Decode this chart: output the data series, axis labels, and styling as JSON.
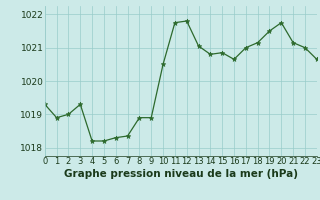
{
  "x": [
    0,
    1,
    2,
    3,
    4,
    5,
    6,
    7,
    8,
    9,
    10,
    11,
    12,
    13,
    14,
    15,
    16,
    17,
    18,
    19,
    20,
    21,
    22,
    23
  ],
  "y": [
    1019.3,
    1018.9,
    1019.0,
    1019.3,
    1018.2,
    1018.2,
    1018.3,
    1018.35,
    1018.9,
    1018.9,
    1020.5,
    1021.75,
    1021.8,
    1021.05,
    1020.8,
    1020.85,
    1020.65,
    1021.0,
    1021.15,
    1021.5,
    1021.75,
    1021.15,
    1021.0,
    1020.65
  ],
  "xlim": [
    0,
    23
  ],
  "ylim": [
    1017.75,
    1022.25
  ],
  "yticks": [
    1018,
    1019,
    1020,
    1021,
    1022
  ],
  "xticks": [
    0,
    1,
    2,
    3,
    4,
    5,
    6,
    7,
    8,
    9,
    10,
    11,
    12,
    13,
    14,
    15,
    16,
    17,
    18,
    19,
    20,
    21,
    22,
    23
  ],
  "line_color": "#2d6a2d",
  "marker": "*",
  "marker_size": 3.5,
  "background_color": "#cceae8",
  "grid_color": "#99ccca",
  "xlabel": "Graphe pression niveau de la mer (hPa)",
  "xlabel_color": "#1a3a1a",
  "xlabel_fontsize": 7.5,
  "tick_fontsize": 6,
  "ytick_fontsize": 6.5
}
